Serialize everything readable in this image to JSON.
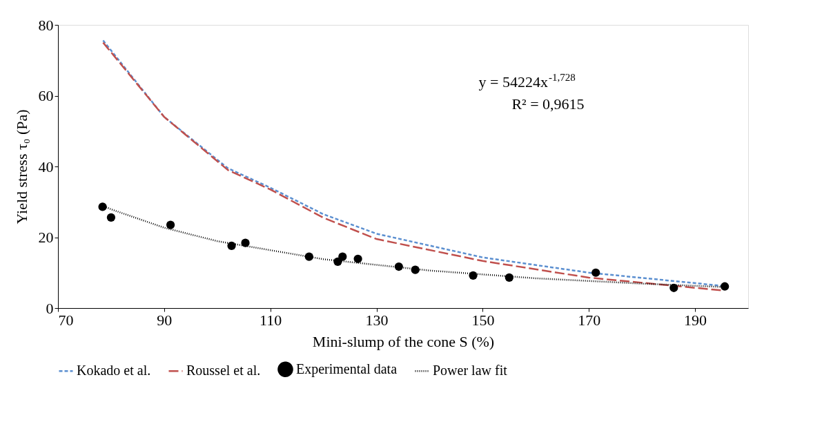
{
  "chart_data": {
    "type": "line",
    "xlabel": "Mini-slump of the cone S (%)",
    "ylabel": "Yield stress τ₀ (Pa)",
    "xlim": [
      70,
      200
    ],
    "xticks": [
      70,
      90,
      110,
      130,
      150,
      170,
      190
    ],
    "ylim": [
      0,
      80
    ],
    "yticks": [
      0,
      20,
      40,
      60,
      80
    ],
    "grid": false,
    "legend": "bottom",
    "annotations": [
      "y = 54224x$^{-1,728}$",
      "R² = 0,9615"
    ],
    "series": [
      {
        "name": "Kokado et al.",
        "line_style": "dashed",
        "color": "#5b8fd0",
        "x": [
          78.5,
          90,
          102,
          110,
          120,
          130,
          150,
          170,
          195
        ],
        "values": [
          75.6,
          54,
          39.5,
          34,
          26.5,
          21,
          14.3,
          10,
          6.3
        ]
      },
      {
        "name": "Roussel et al.",
        "line_style": "dashed",
        "color": "#c0504d",
        "x": [
          78.5,
          90,
          102,
          110,
          120,
          130,
          150,
          170,
          195
        ],
        "values": [
          75,
          54,
          39,
          33.5,
          25.5,
          19.5,
          13.3,
          8.6,
          5
        ]
      },
      {
        "name": "Experimental data",
        "type": "scatter",
        "marker": "circle",
        "color": "#000000",
        "x": [
          78.4,
          80.0,
          91.2,
          102.7,
          105.3,
          117.3,
          122.7,
          123.6,
          126.5,
          134.2,
          137.3,
          148.2,
          155.0,
          171.3,
          186.0,
          195.6
        ],
        "values": [
          28.6,
          25.6,
          23.5,
          17.6,
          18.4,
          14.5,
          13.1,
          14.5,
          13.9,
          11.7,
          10.8,
          9.2,
          8.6,
          10.0,
          5.7,
          6.1
        ]
      },
      {
        "name": "Power law fit",
        "line_style": "dotted",
        "color": "#000000",
        "x": [
          78,
          80,
          90,
          100,
          120,
          140,
          160,
          180,
          196
        ],
        "values": [
          29.2,
          27.9,
          22.7,
          18.9,
          13.8,
          10.6,
          8.4,
          6.9,
          5.9
        ]
      }
    ]
  }
}
